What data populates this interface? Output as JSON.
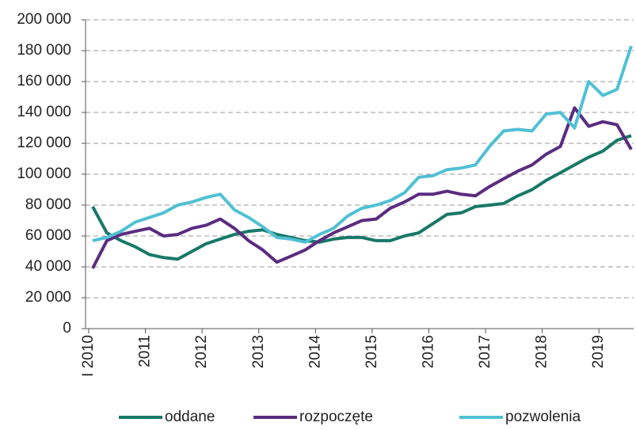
{
  "chart_data": {
    "type": "line",
    "categories": [
      "I 2010",
      null,
      null,
      null,
      "2011",
      null,
      null,
      null,
      "2012",
      null,
      null,
      null,
      "2013",
      null,
      null,
      null,
      "2014",
      null,
      null,
      null,
      "2015",
      null,
      null,
      null,
      "2016",
      null,
      null,
      null,
      "2017",
      null,
      null,
      null,
      "2018",
      null,
      null,
      null,
      "2019",
      null,
      null
    ],
    "series": [
      {
        "name": "oddane",
        "color": "#187868",
        "values": [
          79000,
          62000,
          57000,
          53000,
          48000,
          46000,
          45000,
          50000,
          55000,
          58000,
          61000,
          63000,
          64000,
          61000,
          59000,
          57000,
          56000,
          58000,
          59000,
          59000,
          57000,
          57000,
          60000,
          62000,
          68000,
          74000,
          75000,
          79000,
          80000,
          81000,
          86000,
          90000,
          96000,
          101000,
          106000,
          111000,
          115000,
          122000,
          125000
        ]
      },
      {
        "name": "rozpoczęte",
        "color": "#5a2c80",
        "values": [
          39000,
          57000,
          61000,
          63000,
          65000,
          60000,
          61000,
          65000,
          67000,
          71000,
          65000,
          57000,
          51000,
          43000,
          47000,
          51000,
          57000,
          62000,
          66000,
          70000,
          71000,
          78000,
          82000,
          87000,
          87000,
          89000,
          87000,
          86000,
          92000,
          97000,
          102000,
          106000,
          113000,
          118000,
          143000,
          131000,
          134000,
          132000,
          116000
        ]
      },
      {
        "name": "pozwolenia",
        "color": "#50c0d4",
        "values": [
          57000,
          59000,
          63000,
          69000,
          72000,
          75000,
          80000,
          82000,
          85000,
          87000,
          77000,
          72000,
          66000,
          59000,
          58000,
          56000,
          61000,
          65000,
          73000,
          78000,
          80000,
          83000,
          88000,
          98000,
          99000,
          103000,
          104000,
          106000,
          118000,
          128000,
          129000,
          128000,
          139000,
          140000,
          130000,
          160000,
          151000,
          155000,
          183000
        ]
      }
    ],
    "ylim": [
      0,
      200000
    ],
    "yticks": [
      0,
      {
        "value": 20000,
        "label": "20 000"
      },
      {
        "value": 40000,
        "label": "40 000"
      },
      {
        "value": 60000,
        "label": "60 000"
      },
      {
        "value": 80000,
        "label": "80 000"
      },
      {
        "value": 100000,
        "label": "100 000"
      },
      {
        "value": 120000,
        "label": "120 000"
      },
      {
        "value": 140000,
        "label": "140 000"
      },
      {
        "value": 160000,
        "label": "160 000"
      },
      {
        "value": 180000,
        "label": "180 000"
      },
      {
        "value": 200000,
        "label": "200 000"
      }
    ],
    "grid": true,
    "legend": "bottom"
  }
}
